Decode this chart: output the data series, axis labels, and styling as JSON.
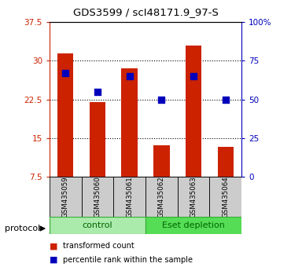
{
  "title": "GDS3599 / scI48171.9_97-S",
  "samples": [
    "GSM435059",
    "GSM435060",
    "GSM435061",
    "GSM435062",
    "GSM435063",
    "GSM435064"
  ],
  "red_values": [
    31.5,
    22.0,
    28.5,
    13.5,
    33.0,
    13.2
  ],
  "blue_percentiles": [
    67,
    55,
    65,
    50,
    65,
    50
  ],
  "ylim_left": [
    7.5,
    37.5
  ],
  "ylim_right": [
    0,
    100
  ],
  "yticks_left": [
    7.5,
    15.0,
    22.5,
    30.0,
    37.5
  ],
  "yticks_right": [
    0,
    25,
    50,
    75,
    100
  ],
  "ytick_labels_left": [
    "7.5",
    "15",
    "22.5",
    "30",
    "37.5"
  ],
  "ytick_labels_right": [
    "0",
    "25",
    "50",
    "75",
    "100%"
  ],
  "bar_color": "#cc2200",
  "dot_color": "#0000bb",
  "bar_width": 0.5,
  "bar_bottom": 7.5,
  "group_label_color": "#006600",
  "control_label": "control",
  "eset_label": "Eset depletion",
  "protocol_label": "protocol",
  "legend_red": "transformed count",
  "legend_blue": "percentile rank within the sample",
  "left_axis_color": "#cc2200",
  "right_axis_color": "#0000bb"
}
